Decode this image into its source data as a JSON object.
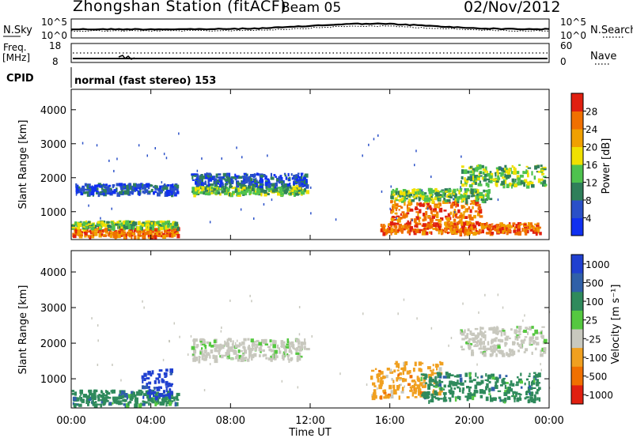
{
  "header": {
    "station": "Zhongshan Station (fitACF)",
    "beam": "Beam 05",
    "date": "02/Nov/2012"
  },
  "status_panels": {
    "nsky": {
      "label": "N.Sky",
      "ticks": [
        "10^5",
        "10^0"
      ]
    },
    "nsearch": {
      "label": "N.Search",
      "ticks": [
        "10^5",
        "10^0"
      ]
    },
    "freq": {
      "label": "Freq.",
      "unit": "[MHz]",
      "ticks": [
        "18",
        "8"
      ]
    },
    "nave": {
      "label": "Nave",
      "ticks": [
        "60",
        "0"
      ]
    },
    "cpid": {
      "label": "CPID",
      "value": "normal (fast stereo) 153"
    }
  },
  "chart_data": [
    {
      "type": "heatmap",
      "name": "power",
      "ylabel": "Slant Range [km]",
      "xlabel": "Time UT",
      "x_ticks": [
        "00:00",
        "04:00",
        "08:00",
        "12:00",
        "16:00",
        "20:00",
        "00:00"
      ],
      "x_range_hours": [
        0,
        24
      ],
      "y_ticks": [
        1000,
        2000,
        3000,
        4000
      ],
      "ylim": [
        180,
        4600
      ],
      "colorbar": {
        "label": "Power [dB]",
        "ticks": [
          "4",
          "8",
          "12",
          "16",
          "20",
          "24",
          "28"
        ],
        "colors": [
          "#1030f0",
          "#2a50c8",
          "#2f7f5a",
          "#4ec24e",
          "#f0e000",
          "#f0a000",
          "#f07000",
          "#e02010"
        ]
      },
      "regions": [
        {
          "t": [
            0.0,
            5.3
          ],
          "r": [
            300,
            550
          ],
          "level": "high"
        },
        {
          "t": [
            0.0,
            5.3
          ],
          "r": [
            550,
            750
          ],
          "level": "medium"
        },
        {
          "t": [
            0.2,
            5.3
          ],
          "r": [
            1550,
            1850
          ],
          "level": "low"
        },
        {
          "t": [
            6.0,
            11.8
          ],
          "r": [
            1550,
            1800
          ],
          "level": "medium"
        },
        {
          "t": [
            6.0,
            11.8
          ],
          "r": [
            1800,
            2150
          ],
          "level": "low"
        },
        {
          "t": [
            15.5,
            23.5
          ],
          "r": [
            400,
            700
          ],
          "level": "high"
        },
        {
          "t": [
            16.0,
            20.5
          ],
          "r": [
            700,
            1350
          ],
          "level": "high"
        },
        {
          "t": [
            16.0,
            21.0
          ],
          "r": [
            1350,
            1700
          ],
          "level": "medium"
        },
        {
          "t": [
            19.5,
            23.8
          ],
          "r": [
            1800,
            2400
          ],
          "level": "medium"
        }
      ]
    },
    {
      "type": "heatmap",
      "name": "velocity",
      "ylabel": "Slant Range [km]",
      "xlabel": "Time UT",
      "x_ticks": [
        "00:00",
        "04:00",
        "08:00",
        "12:00",
        "16:00",
        "20:00",
        "00:00"
      ],
      "x_range_hours": [
        0,
        24
      ],
      "y_ticks": [
        1000,
        2000,
        3000,
        4000
      ],
      "ylim": [
        180,
        4600
      ],
      "colorbar": {
        "label": "Velocity [m s⁻¹]",
        "ticks": [
          "1000",
          "500",
          "100",
          "25",
          "-25",
          "-100",
          "-500",
          "-1000"
        ],
        "colors": [
          "#2040d0",
          "#3060a8",
          "#2f8a5c",
          "#55c840",
          "#c8c8be",
          "#f0a020",
          "#f07000",
          "#e02010"
        ]
      },
      "regions": [
        {
          "t": [
            0.0,
            5.3
          ],
          "r": [
            300,
            700
          ],
          "class": "100"
        },
        {
          "t": [
            3.5,
            5.0
          ],
          "r": [
            500,
            1300
          ],
          "class": "1000"
        },
        {
          "t": [
            6.0,
            11.8
          ],
          "r": [
            1550,
            2150
          ],
          "class": "25"
        },
        {
          "t": [
            15.0,
            18.5
          ],
          "r": [
            500,
            1500
          ],
          "class": "-100"
        },
        {
          "t": [
            17.5,
            23.5
          ],
          "r": [
            400,
            1200
          ],
          "class": "100"
        },
        {
          "t": [
            19.5,
            23.8
          ],
          "r": [
            1700,
            2500
          ],
          "class": "25"
        }
      ]
    }
  ]
}
